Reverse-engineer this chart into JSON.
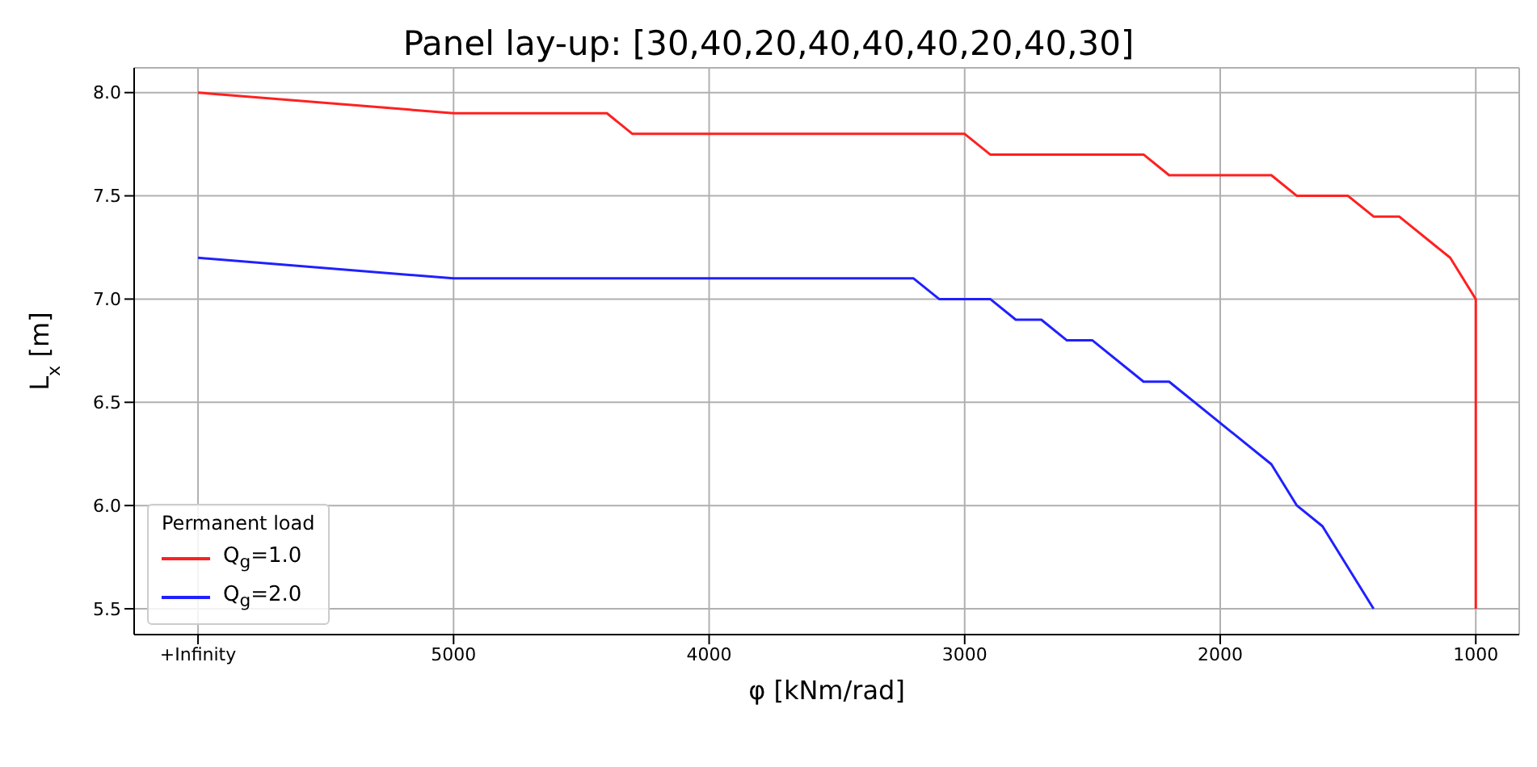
{
  "chart_data": {
    "type": "line",
    "title": "Panel lay-up: [30,40,20,40,40,40,20,40,30]",
    "xlabel": "φ [kNm/rad]",
    "ylabel": "L$_{x}$ [m]",
    "legend_title": "Permanent load",
    "legend": "bottom left",
    "grid": true,
    "marker": "none",
    "line_style": "solid",
    "xlim": [
      6250,
      830
    ],
    "xticks": [
      {
        "value": 6000,
        "label": "+Infinity"
      },
      5000,
      4000,
      3000,
      2000,
      1000
    ],
    "ylim": [
      5.375,
      8.12
    ],
    "yticks": [
      5.5,
      {
        "value": 6,
        "label": "6.0"
      },
      6.5,
      {
        "value": 7,
        "label": "7.0"
      },
      7.5,
      {
        "value": 8,
        "label": "8.0"
      }
    ],
    "series": [
      {
        "name": "Q$_{g}$=1.0",
        "color": "#ff2020",
        "x": [
          6000,
          5000,
          4400,
          4300,
          3000,
          2900,
          2300,
          2200,
          1800,
          1700,
          1500,
          1400,
          1300,
          1100,
          1000,
          1000
        ],
        "values": [
          8.0,
          7.9,
          7.9,
          7.8,
          7.8,
          7.7,
          7.7,
          7.6,
          7.6,
          7.5,
          7.5,
          7.4,
          7.4,
          7.2,
          7.0,
          5.5
        ]
      },
      {
        "name": "Q$_{g}$=2.0",
        "color": "#2020ff",
        "x": [
          6000,
          5000,
          3200,
          3100,
          2900,
          2800,
          2700,
          2600,
          2500,
          2300,
          2200,
          1800,
          1700,
          1600,
          1400
        ],
        "values": [
          7.2,
          7.1,
          7.1,
          7.0,
          7.0,
          6.9,
          6.9,
          6.8,
          6.8,
          6.6,
          6.6,
          6.2,
          6.0,
          5.9,
          5.5
        ]
      }
    ]
  }
}
